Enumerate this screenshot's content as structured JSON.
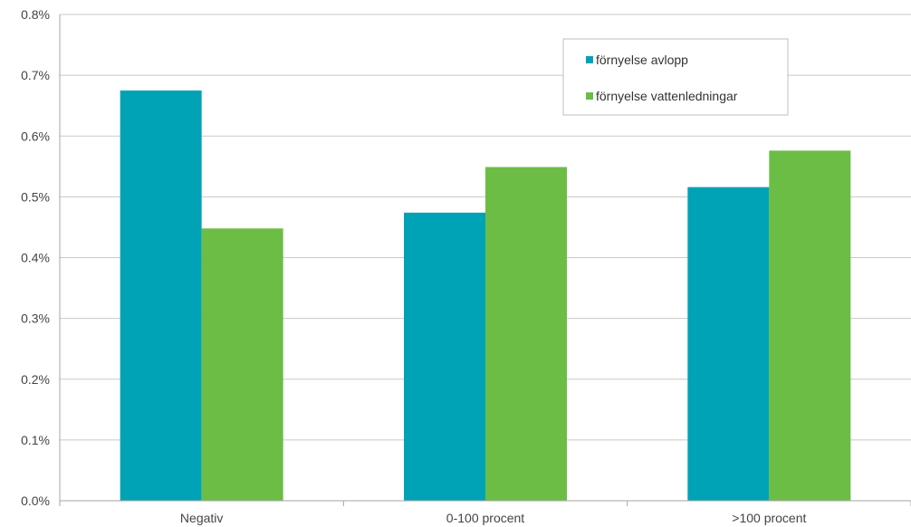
{
  "chart_data": {
    "type": "bar",
    "categories": [
      "Negativ",
      "0-100 procent",
      ">100 procent"
    ],
    "series": [
      {
        "name": "förnyelse avlopp",
        "color": "#00a3b5",
        "values": [
          0.675,
          0.474,
          0.516
        ]
      },
      {
        "name": "förnyelse vattenledningar",
        "color": "#6bbd45",
        "values": [
          0.448,
          0.549,
          0.576
        ]
      }
    ],
    "ylim": [
      0,
      0.8
    ],
    "yticks": [
      "0.0%",
      "0.1%",
      "0.2%",
      "0.3%",
      "0.4%",
      "0.5%",
      "0.6%",
      "0.7%",
      "0.8%"
    ],
    "y_unit": "%",
    "grid": true,
    "legend_position": "top-right",
    "title": "",
    "xlabel": "",
    "ylabel": ""
  }
}
